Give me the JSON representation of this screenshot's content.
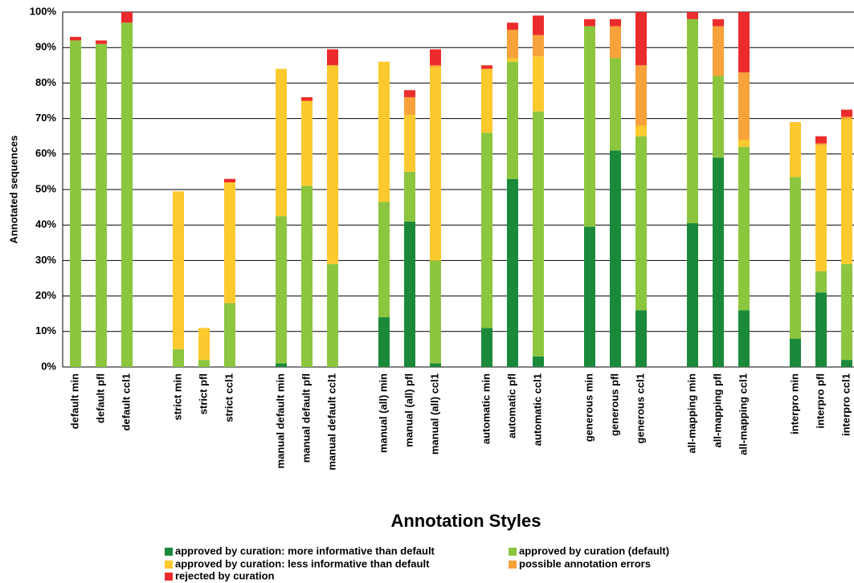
{
  "chart_data": {
    "type": "stacked_bar",
    "x_label": "Annotation Styles",
    "y_label": "Annotated sequences",
    "categories": [
      "default min",
      "default pfl",
      "default ccl1",
      null,
      "strict min",
      "strict pfl",
      "strict ccl1",
      null,
      "manual default min",
      "manual default pfl",
      "manual default ccl1",
      null,
      "manual (all) min",
      "manual (all) pfl",
      "manual (all) ccl1",
      null,
      "automatic min",
      "automatic pfl",
      "automatic ccl1",
      null,
      "generous min",
      "generous pfl",
      "generous ccl1",
      null,
      "all-mapping min",
      "all-mapping pfl",
      "all-mapping ccl1",
      null,
      "interpro min",
      "interpro pfl",
      "interpro ccl1"
    ],
    "series": [
      {
        "name": "approved by curation: more informative than default",
        "color": "#1a8a3a",
        "values": [
          0,
          0,
          0,
          null,
          0,
          0,
          0,
          null,
          1,
          0,
          0,
          null,
          14,
          41,
          1,
          null,
          11,
          53,
          3,
          null,
          39.5,
          61,
          16,
          null,
          40.5,
          59,
          16,
          null,
          8,
          21,
          2
        ]
      },
      {
        "name": "approved by curation (default)",
        "color": "#8cc63f",
        "values": [
          92,
          91,
          97,
          null,
          5,
          2,
          18,
          null,
          41.5,
          51,
          29,
          null,
          32.5,
          14,
          29,
          null,
          55,
          33,
          69,
          null,
          56.5,
          26,
          49,
          null,
          57.5,
          23,
          46,
          null,
          45.5,
          6,
          27
        ]
      },
      {
        "name": "approved by curation: less informative than default",
        "color": "#fcc92f",
        "values": [
          0,
          0,
          0,
          null,
          44.5,
          9,
          34,
          null,
          41.5,
          24,
          56,
          null,
          39.5,
          16,
          54.5,
          null,
          18,
          1,
          15.5,
          null,
          0,
          0,
          3,
          null,
          0,
          0,
          2,
          null,
          15.5,
          35.5,
          41
        ]
      },
      {
        "name": "possible annotation errors",
        "color": "#f7a23a",
        "values": [
          0,
          0,
          0,
          null,
          0,
          0,
          0,
          null,
          0,
          0,
          0,
          null,
          0,
          5,
          0.5,
          null,
          0,
          8,
          6,
          null,
          0,
          9,
          17,
          null,
          0,
          14,
          19,
          null,
          0,
          0.5,
          0.5
        ]
      },
      {
        "name": "rejected by curation",
        "color": "#ec2c2c",
        "values": [
          1,
          1,
          3,
          null,
          0,
          0,
          1,
          null,
          0,
          1,
          4.5,
          null,
          0,
          2,
          4.5,
          null,
          1,
          2,
          5.5,
          null,
          2,
          2,
          15,
          null,
          2,
          2,
          17,
          null,
          0,
          2,
          2
        ]
      }
    ],
    "ylim": [
      0,
      100
    ],
    "yticks": [
      {
        "value": 0,
        "label": "0%"
      },
      {
        "value": 10,
        "label": "10%"
      },
      {
        "value": 20,
        "label": "20%"
      },
      {
        "value": 30,
        "label": "30%"
      },
      {
        "value": 40,
        "label": "40%"
      },
      {
        "value": 50,
        "label": "50%"
      },
      {
        "value": 60,
        "label": "60%"
      },
      {
        "value": 70,
        "label": "70%"
      },
      {
        "value": 80,
        "label": "80%"
      },
      {
        "value": 90,
        "label": "90%"
      },
      {
        "value": 100,
        "label": "100%"
      }
    ],
    "grid": true
  }
}
